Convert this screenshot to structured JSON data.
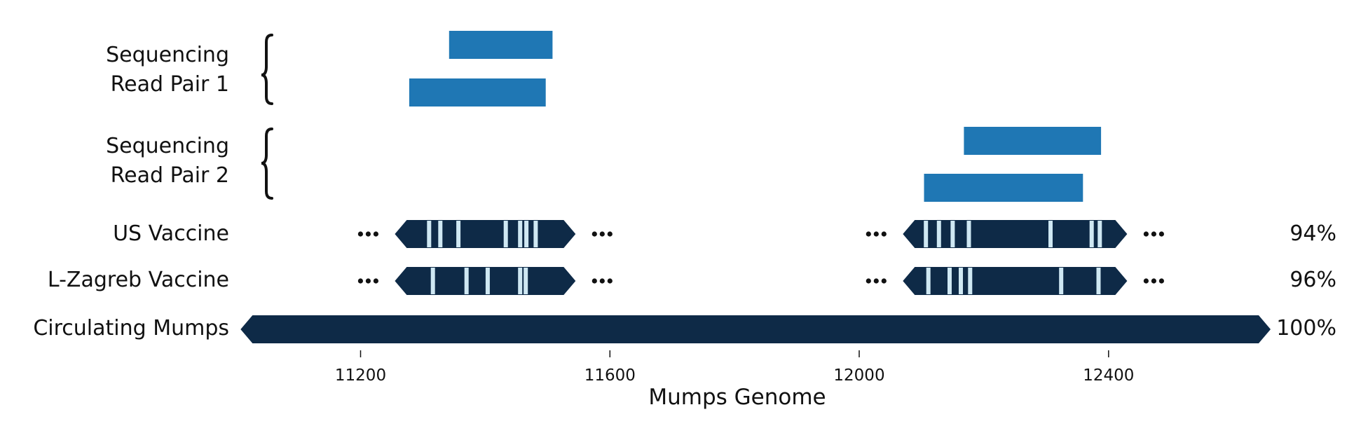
{
  "colors": {
    "read": "#1f77b4",
    "genome": "#0e2a47",
    "variant": "#cfe8f3",
    "text": "#111111"
  },
  "rows": [
    {
      "id": "rp1",
      "lines": [
        "Sequencing",
        "Read Pair 1"
      ]
    },
    {
      "id": "rp2",
      "lines": [
        "Sequencing",
        "Read Pair 2"
      ]
    },
    {
      "id": "us",
      "lines": [
        "US Vaccine"
      ],
      "percent": "94%"
    },
    {
      "id": "lz",
      "lines": [
        "L-Zagreb Vaccine"
      ],
      "percent": "96%"
    },
    {
      "id": "circ",
      "lines": [
        "Circulating Mumps"
      ],
      "percent": "100%"
    }
  ],
  "axis": {
    "label": "Mumps Genome",
    "ticks": [
      "11200",
      "11600",
      "12000",
      "12400"
    ]
  },
  "chart_data": {
    "type": "genome-alignment",
    "xlabel": "Mumps Genome",
    "xlim": [
      11030,
      12660
    ],
    "xticks": [
      11200,
      11600,
      12000,
      12400
    ],
    "reads": [
      {
        "pair": "Sequencing Read Pair 1",
        "start": 11342,
        "end": 11508
      },
      {
        "pair": "Sequencing Read Pair 1",
        "start": 11278,
        "end": 11497
      },
      {
        "pair": "Sequencing Read Pair 2",
        "start": 12168,
        "end": 12388
      },
      {
        "pair": "Sequencing Read Pair 2",
        "start": 12104,
        "end": 12359
      }
    ],
    "vaccine_segments": [
      {
        "genome": "US Vaccine",
        "start": 11255,
        "end": 11545,
        "variants": [
          11310,
          11328,
          11357,
          11433,
          11456,
          11466,
          11481
        ]
      },
      {
        "genome": "US Vaccine",
        "start": 12070,
        "end": 12430,
        "variants": [
          12107,
          12128,
          12150,
          12176,
          12307,
          12373,
          12386
        ]
      },
      {
        "genome": "L-Zagreb Vaccine",
        "start": 11255,
        "end": 11545,
        "variants": [
          11316,
          11370,
          11404,
          11456,
          11465
        ]
      },
      {
        "genome": "L-Zagreb Vaccine",
        "start": 12070,
        "end": 12430,
        "variants": [
          12111,
          12145,
          12163,
          12178,
          12324,
          12384
        ]
      }
    ],
    "circulating": {
      "genome": "Circulating Mumps",
      "start": 11030,
      "end": 12660
    },
    "identity": [
      {
        "genome": "US Vaccine",
        "value": "94%"
      },
      {
        "genome": "L-Zagreb Vaccine",
        "value": "96%"
      },
      {
        "genome": "Circulating Mumps",
        "value": "100%"
      }
    ]
  }
}
